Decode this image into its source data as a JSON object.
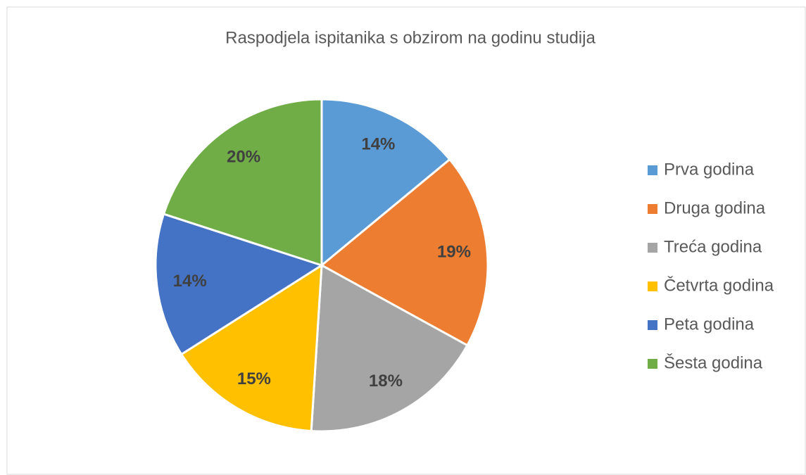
{
  "chart_data": {
    "type": "pie",
    "title": "Raspodjela ispitanika s obzirom na godinu studija",
    "categories": [
      "Prva godina",
      "Druga godina",
      "Treća godina",
      "Četvrta godina",
      "Peta godina",
      "Šesta godina"
    ],
    "values": [
      14,
      19,
      18,
      15,
      14,
      20
    ],
    "value_labels": [
      "14%",
      "19%",
      "18%",
      "15%",
      "14%",
      "20%"
    ],
    "colors": [
      "#5b9bd5",
      "#ed7d31",
      "#a5a5a5",
      "#ffc000",
      "#4472c4",
      "#70ad47"
    ],
    "legend": "right"
  }
}
